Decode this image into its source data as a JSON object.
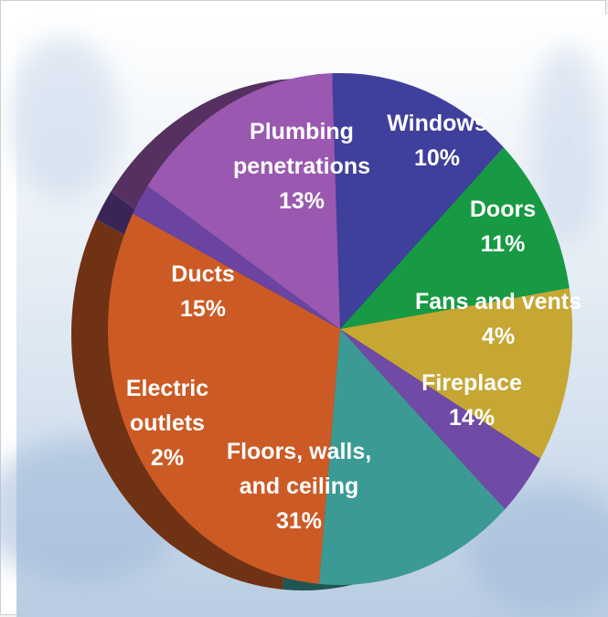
{
  "chart_data": {
    "type": "pie",
    "title": "",
    "slices": [
      {
        "lines": [
          "Plumbing",
          "penetrations"
        ],
        "label": "Plumbing penetrations",
        "value": 13,
        "value_label": "13%",
        "color": "#3f3f9c"
      },
      {
        "lines": [
          "Windows"
        ],
        "label": "Windows",
        "value": 10,
        "value_label": "10%",
        "color": "#179a43"
      },
      {
        "lines": [
          "Doors"
        ],
        "label": "Doors",
        "value": 11,
        "value_label": "11%",
        "color": "#c6a734"
      },
      {
        "lines": [
          "Fans and vents"
        ],
        "label": "Fans and vents",
        "value": 4,
        "value_label": "4%",
        "color": "#6f4aa6"
      },
      {
        "lines": [
          "Fireplace"
        ],
        "label": "Fireplace",
        "value": 14,
        "value_label": "14%",
        "color": "#3c9a94"
      },
      {
        "lines": [
          "Floors, walls,",
          "and ceiling"
        ],
        "label": "Floors, walls, and ceiling",
        "value": 31,
        "value_label": "31%",
        "color": "#cc5a25"
      },
      {
        "lines": [
          "Electric",
          "outlets"
        ],
        "label": "Electric outlets",
        "value": 2,
        "value_label": "2%",
        "color": "#6a44a0"
      },
      {
        "lines": [
          "Ducts"
        ],
        "label": "Ducts",
        "value": 15,
        "value_label": "15%",
        "color": "#9a58b0"
      }
    ]
  }
}
